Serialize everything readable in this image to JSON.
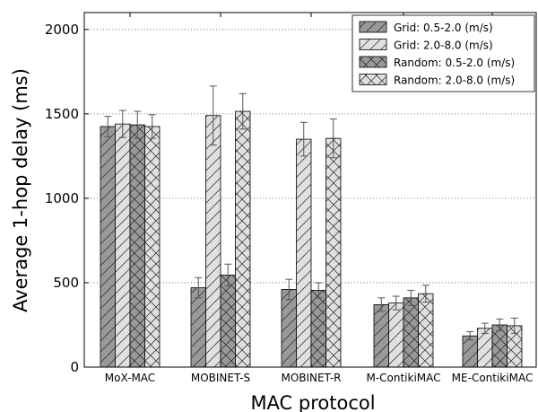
{
  "chart_data": {
    "type": "bar",
    "title": "",
    "xlabel": "MAC protocol",
    "ylabel": "Average 1-hop delay (ms)",
    "ylim": [
      0,
      2100
    ],
    "yticks": [
      0,
      500,
      1000,
      1500,
      2000
    ],
    "grid": "horizontal dotted",
    "legend_position": "top-right",
    "categories": [
      "MoX-MAC",
      "MOBINET-S",
      "MOBINET-R",
      "M-ContikiMAC",
      "ME-ContikiMAC"
    ],
    "series": [
      {
        "name": "Grid: 0.5-2.0 (m/s)",
        "color": "#999999",
        "hatch": "forward-diagonal",
        "values": [
          1425,
          470,
          460,
          370,
          185
        ],
        "errors": [
          60,
          60,
          60,
          40,
          25
        ]
      },
      {
        "name": "Grid: 2.0-8.0 (m/s)",
        "color": "#e0e0e0",
        "hatch": "forward-diagonal",
        "values": [
          1440,
          1490,
          1350,
          380,
          230
        ],
        "errors": [
          80,
          175,
          100,
          40,
          30
        ]
      },
      {
        "name": "Random: 0.5-2.0 (m/s)",
        "color": "#999999",
        "hatch": "cross",
        "values": [
          1435,
          545,
          455,
          410,
          250
        ],
        "errors": [
          80,
          65,
          45,
          45,
          35
        ]
      },
      {
        "name": "Random: 2.0-8.0 (m/s)",
        "color": "#e0e0e0",
        "hatch": "cross",
        "values": [
          1425,
          1515,
          1355,
          435,
          245
        ],
        "errors": [
          70,
          105,
          115,
          50,
          45
        ]
      }
    ]
  }
}
